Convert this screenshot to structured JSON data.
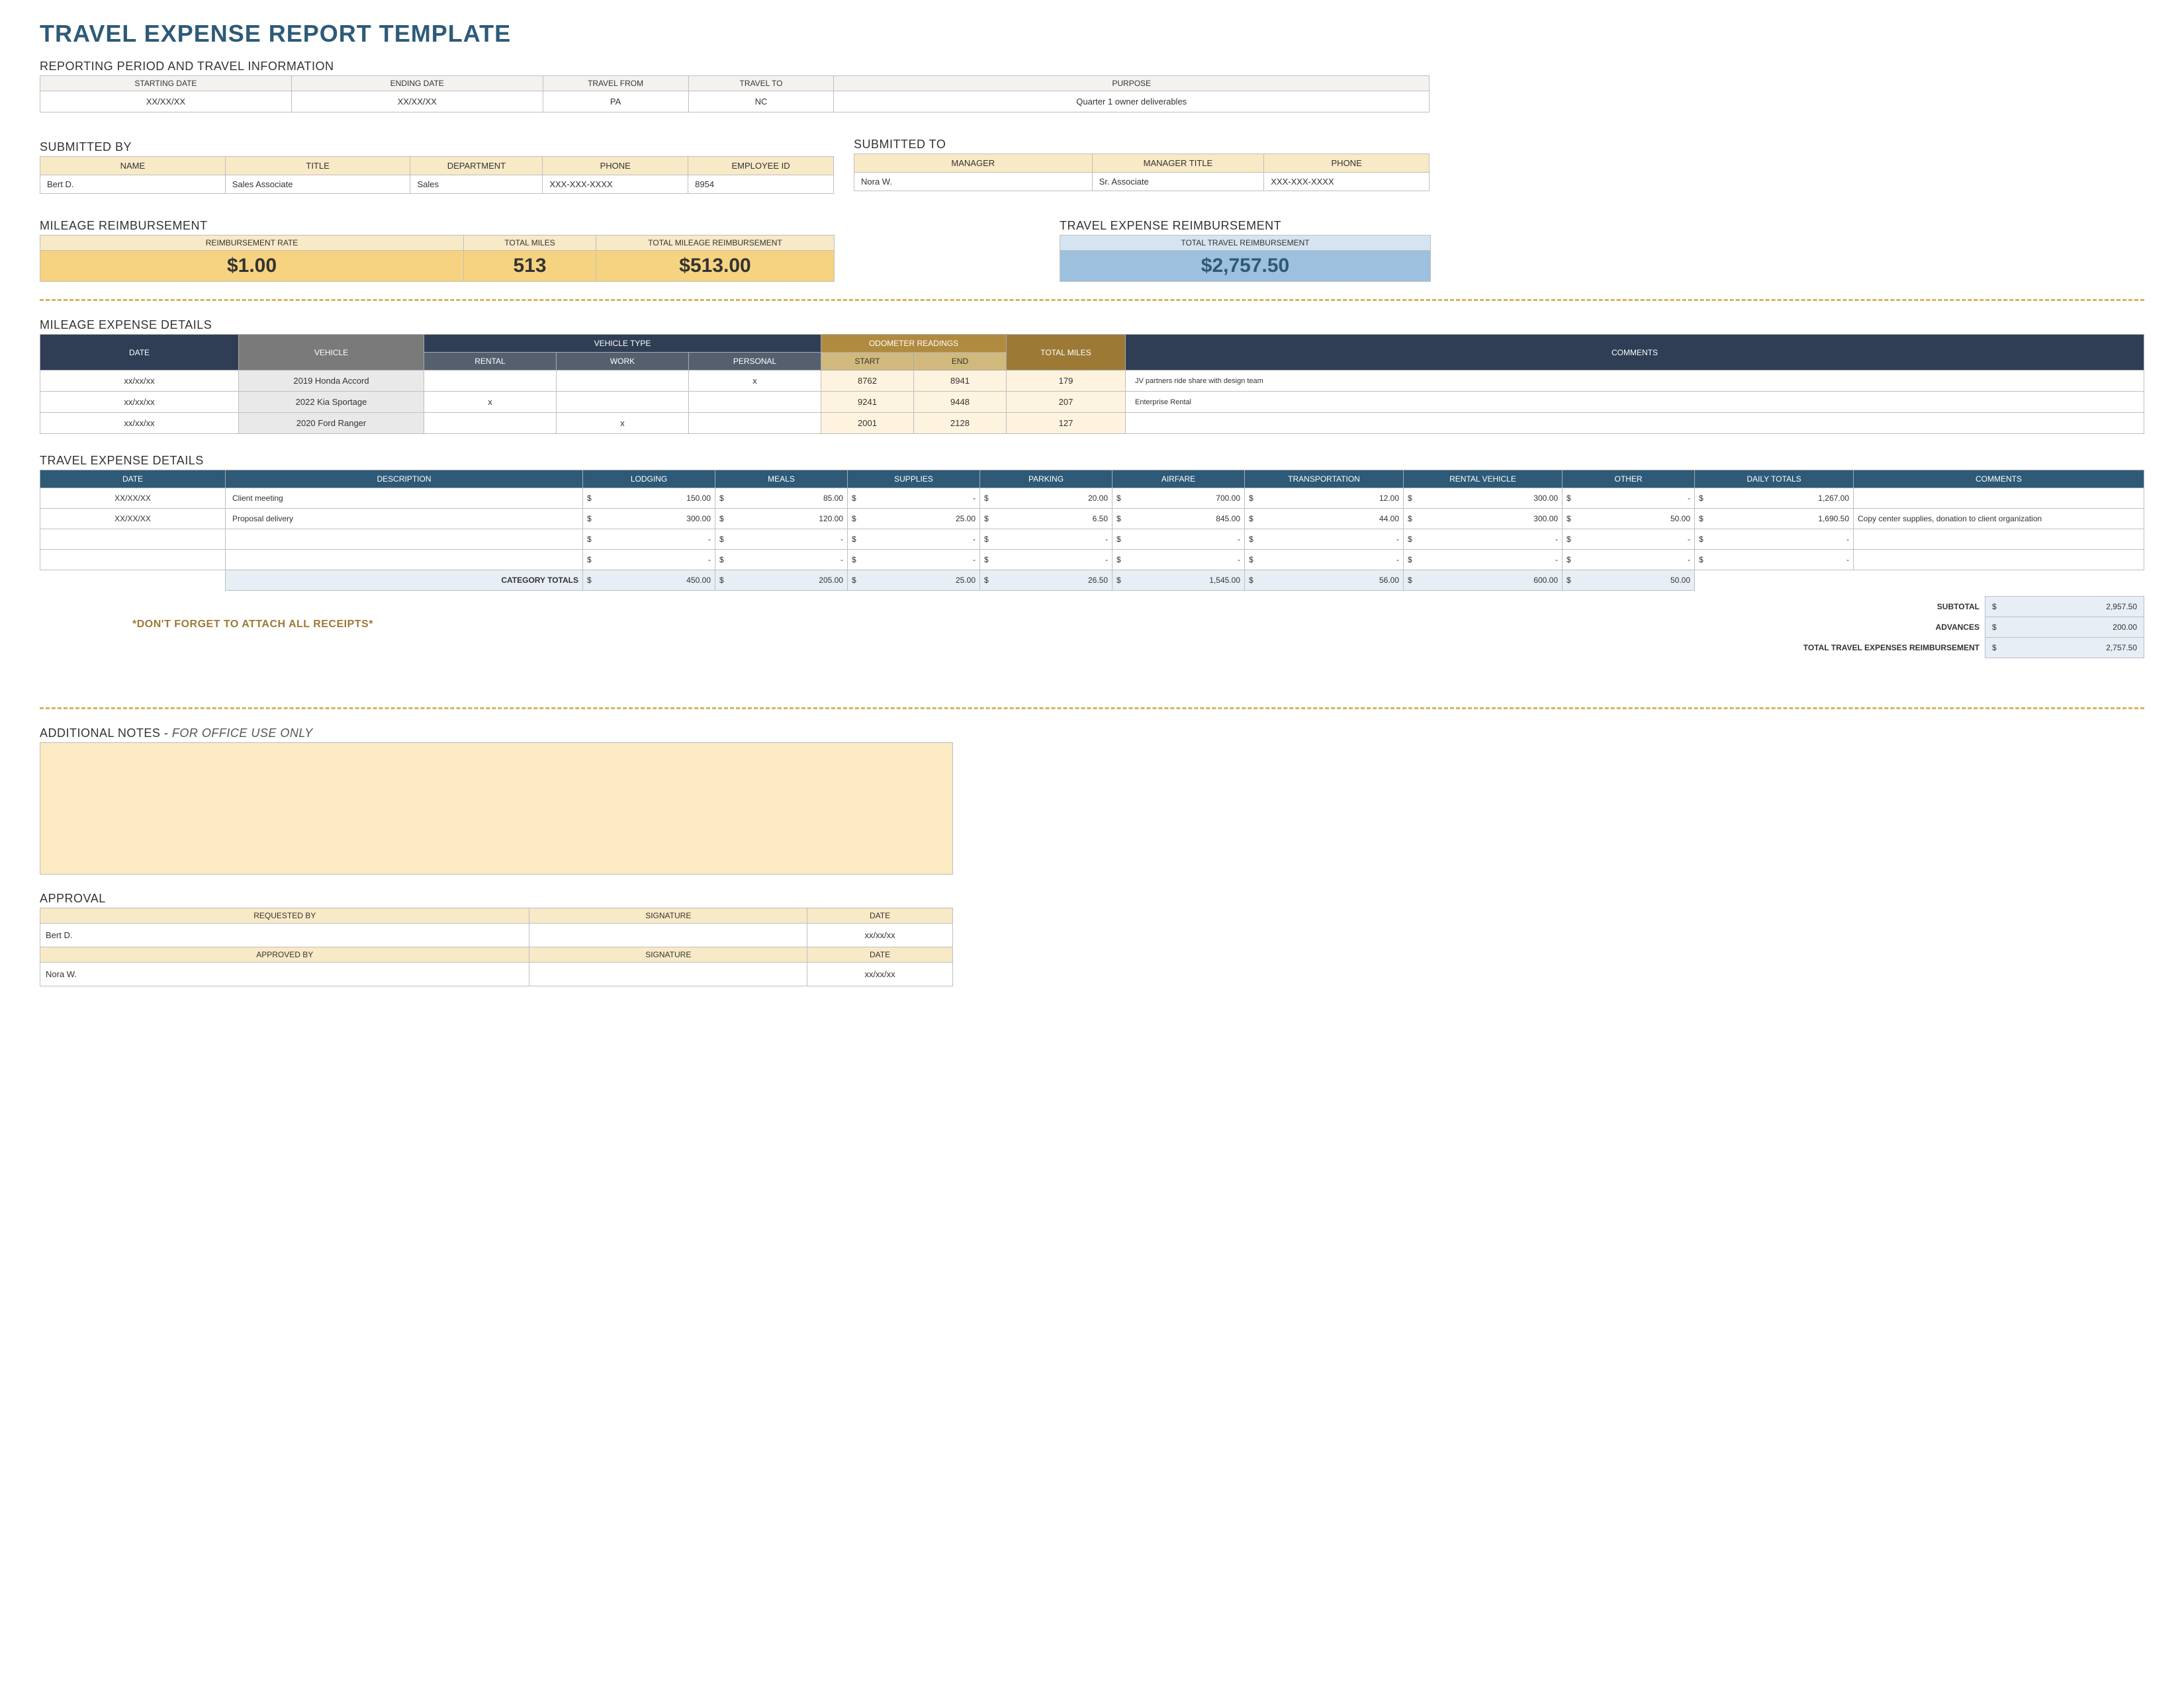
{
  "title": "TRAVEL EXPENSE REPORT TEMPLATE",
  "reporting": {
    "section_label": "REPORTING PERIOD AND TRAVEL INFORMATION",
    "headers": [
      "STARTING DATE",
      "ENDING DATE",
      "TRAVEL FROM",
      "TRAVEL TO",
      "PURPOSE"
    ],
    "values": [
      "XX/XX/XX",
      "XX/XX/XX",
      "PA",
      "NC",
      "Quarter 1 owner deliverables"
    ]
  },
  "submitted_by": {
    "section_label": "SUBMITTED BY",
    "headers": [
      "NAME",
      "TITLE",
      "DEPARTMENT",
      "PHONE",
      "EMPLOYEE ID"
    ],
    "values": [
      "Bert D.",
      "Sales Associate",
      "Sales",
      "XXX-XXX-XXXX",
      "8954"
    ]
  },
  "submitted_to": {
    "section_label": "SUBMITTED TO",
    "headers": [
      "MANAGER",
      "MANAGER TITLE",
      "PHONE"
    ],
    "values": [
      "Nora W.",
      "Sr. Associate",
      "XXX-XXX-XXXX"
    ]
  },
  "mileage_reimb": {
    "section_label": "MILEAGE REIMBURSEMENT",
    "headers": [
      "REIMBURSEMENT RATE",
      "TOTAL MILES",
      "TOTAL MILEAGE REIMBURSEMENT"
    ],
    "rate": "$1.00",
    "total_miles": "513",
    "total_reimb": "$513.00"
  },
  "travel_reimb": {
    "section_label": "TRAVEL EXPENSE REIMBURSEMENT",
    "header": "TOTAL TRAVEL REIMBURSEMENT",
    "total": "$2,757.50"
  },
  "mileage_details": {
    "section_label": "MILEAGE EXPENSE DETAILS",
    "col_groups": {
      "date": "DATE",
      "vehicle": "VEHICLE",
      "vehicle_type": "VEHICLE TYPE",
      "vehicle_type_sub": [
        "RENTAL",
        "WORK",
        "PERSONAL"
      ],
      "odometer": "ODOMETER READINGS",
      "odo_sub": [
        "START",
        "END"
      ],
      "total_miles": "TOTAL MILES",
      "comments": "COMMENTS"
    },
    "rows": [
      {
        "date": "xx/xx/xx",
        "vehicle": "2019 Honda Accord",
        "rental": "",
        "work": "",
        "personal": "x",
        "start": "8762",
        "end": "8941",
        "miles": "179",
        "comment": "JV partners ride share with design team"
      },
      {
        "date": "xx/xx/xx",
        "vehicle": "2022 Kia Sportage",
        "rental": "x",
        "work": "",
        "personal": "",
        "start": "9241",
        "end": "9448",
        "miles": "207",
        "comment": "Enterprise Rental"
      },
      {
        "date": "xx/xx/xx",
        "vehicle": "2020 Ford Ranger",
        "rental": "",
        "work": "x",
        "personal": "",
        "start": "2001",
        "end": "2128",
        "miles": "127",
        "comment": ""
      }
    ]
  },
  "travel_details": {
    "section_label": "TRAVEL EXPENSE DETAILS",
    "headers": [
      "DATE",
      "DESCRIPTION",
      "LODGING",
      "MEALS",
      "SUPPLIES",
      "PARKING",
      "AIRFARE",
      "TRANSPORTATION",
      "RENTAL VEHICLE",
      "OTHER",
      "DAILY TOTALS",
      "COMMENTS"
    ],
    "rows": [
      {
        "date": "XX/XX/XX",
        "desc": "Client meeting",
        "lodging": "150.00",
        "meals": "85.00",
        "supplies": "-",
        "parking": "20.00",
        "airfare": "700.00",
        "transport": "12.00",
        "rental": "300.00",
        "other": "-",
        "daily": "1,267.00",
        "comment": ""
      },
      {
        "date": "XX/XX/XX",
        "desc": "Proposal delivery",
        "lodging": "300.00",
        "meals": "120.00",
        "supplies": "25.00",
        "parking": "6.50",
        "airfare": "845.00",
        "transport": "44.00",
        "rental": "300.00",
        "other": "50.00",
        "daily": "1,690.50",
        "comment": "Copy center supplies, donation to client organization"
      },
      {
        "date": "",
        "desc": "",
        "lodging": "-",
        "meals": "-",
        "supplies": "-",
        "parking": "-",
        "airfare": "-",
        "transport": "-",
        "rental": "-",
        "other": "-",
        "daily": "-",
        "comment": ""
      },
      {
        "date": "",
        "desc": "",
        "lodging": "-",
        "meals": "-",
        "supplies": "-",
        "parking": "-",
        "airfare": "-",
        "transport": "-",
        "rental": "-",
        "other": "-",
        "daily": "-",
        "comment": ""
      }
    ],
    "category_totals_label": "CATEGORY TOTALS",
    "category_totals": [
      "450.00",
      "205.00",
      "25.00",
      "26.50",
      "1,545.00",
      "56.00",
      "600.00",
      "50.00"
    ],
    "subtotal_label": "SUBTOTAL",
    "subtotal": "2,957.50",
    "advances_label": "ADVANCES",
    "advances": "200.00",
    "grand_label": "TOTAL TRAVEL EXPENSES REIMBURSEMENT",
    "grand": "2,757.50",
    "currency": "$"
  },
  "reminder_text": "*DON'T FORGET TO ATTACH ALL RECEIPTS*",
  "notes": {
    "section_label": "ADDITIONAL NOTES - ",
    "italic": "FOR OFFICE USE ONLY"
  },
  "approval": {
    "section_label": "APPROVAL",
    "headers": [
      "REQUESTED BY",
      "SIGNATURE",
      "DATE"
    ],
    "requested": [
      "Bert D.",
      "",
      "xx/xx/xx"
    ],
    "headers2": [
      "APPROVED BY",
      "SIGNATURE",
      "DATE"
    ],
    "approved": [
      "Nora W.",
      "",
      "xx/xx/xx"
    ]
  },
  "colors": {
    "title": "#2e5a78",
    "tan_header": "#f8e9c7",
    "gold_fill": "#f6d381",
    "blue_header": "#d6e4f2",
    "blue_fill": "#9cc0de",
    "dark_slate": "#2f3e55",
    "navy": "#2e5a78",
    "dash": "#d4b55a",
    "notes_bg": "#fbeac2"
  }
}
